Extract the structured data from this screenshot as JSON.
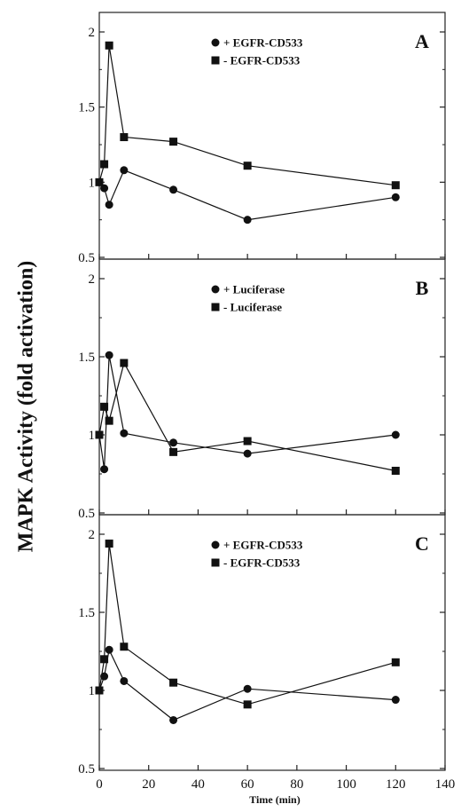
{
  "ylabel": "MAPK Activity (fold activation)",
  "xlabel": "Time (min)",
  "x_ticks": [
    "0",
    "20",
    "40",
    "60",
    "80",
    "100",
    "120",
    "140"
  ],
  "y_ticks": [
    "0.5",
    "1",
    "1.5",
    "2"
  ],
  "colors": {
    "ink": "#111111",
    "axis": "#222222"
  },
  "chart_data": [
    {
      "type": "line",
      "panel_label": "A",
      "xlim": [
        0,
        140
      ],
      "ylim": [
        0.5,
        2
      ],
      "legend_placement": "top-center",
      "series": [
        {
          "name": "+ EGFR-CD533",
          "marker": "circle",
          "x": [
            0,
            2,
            4,
            10,
            30,
            60,
            120
          ],
          "y": [
            1.0,
            0.96,
            0.85,
            1.08,
            0.95,
            0.75,
            0.9
          ]
        },
        {
          "name": "- EGFR-CD533",
          "marker": "square",
          "x": [
            0,
            2,
            4,
            10,
            30,
            60,
            120
          ],
          "y": [
            1.0,
            1.12,
            1.91,
            1.3,
            1.27,
            1.11,
            0.98
          ]
        }
      ]
    },
    {
      "type": "line",
      "panel_label": "B",
      "xlim": [
        0,
        140
      ],
      "ylim": [
        0.5,
        2
      ],
      "legend_placement": "top-center",
      "series": [
        {
          "name": "+ Luciferase",
          "marker": "circle",
          "x": [
            0,
            2,
            4,
            10,
            30,
            60,
            120
          ],
          "y": [
            1.0,
            0.78,
            1.51,
            1.01,
            0.95,
            0.88,
            1.0
          ]
        },
        {
          "name": "- Luciferase",
          "marker": "square",
          "x": [
            0,
            2,
            4,
            10,
            30,
            60,
            120
          ],
          "y": [
            1.0,
            1.18,
            1.09,
            1.46,
            0.89,
            0.96,
            0.77
          ]
        }
      ]
    },
    {
      "type": "line",
      "panel_label": "C",
      "xlim": [
        0,
        140
      ],
      "ylim": [
        0.5,
        2
      ],
      "legend_placement": "top-center",
      "series": [
        {
          "name": "+ EGFR-CD533",
          "marker": "circle",
          "x": [
            0,
            2,
            4,
            10,
            30,
            60,
            120
          ],
          "y": [
            1.0,
            1.09,
            1.26,
            1.06,
            0.81,
            1.01,
            0.94
          ]
        },
        {
          "name": "- EGFR-CD533",
          "marker": "square",
          "x": [
            0,
            2,
            4,
            10,
            30,
            60,
            120
          ],
          "y": [
            1.0,
            1.2,
            1.94,
            1.28,
            1.05,
            0.91,
            1.18
          ]
        }
      ]
    }
  ]
}
